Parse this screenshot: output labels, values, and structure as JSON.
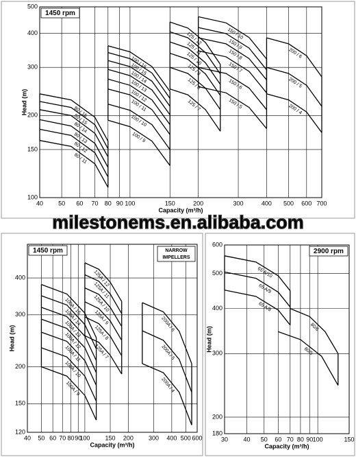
{
  "banner": "milestonems.en.alibaba.com",
  "chart_data": [
    {
      "type": "line",
      "title": "1450 rpm",
      "x_label": "Capacity (m³/h)",
      "y_label": "Head (m)",
      "log_x": true,
      "log_y": true,
      "grid": true,
      "xlim": [
        40,
        700
      ],
      "ylim": [
        100,
        500
      ],
      "xticks": [
        40,
        50,
        60,
        70,
        80,
        90,
        100,
        150,
        200,
        300,
        400,
        500,
        600,
        700
      ],
      "yticks": [
        100,
        150,
        200,
        300,
        400,
        500
      ],
      "series": [
        {
          "name": "80 / 16",
          "color": "#000000",
          "x": [
            40,
            55,
            70,
            80
          ],
          "values": [
            240,
            228,
            197,
            161
          ]
        },
        {
          "name": "80 / 15",
          "color": "#000000",
          "x": [
            40,
            55,
            70,
            80
          ],
          "values": [
            225,
            214,
            185,
            151
          ]
        },
        {
          "name": "80 / 14",
          "color": "#000000",
          "x": [
            40,
            55,
            70,
            80
          ],
          "values": [
            210,
            200,
            172,
            141
          ]
        },
        {
          "name": "80 / 13",
          "color": "#000000",
          "x": [
            40,
            55,
            70,
            80
          ],
          "values": [
            193,
            183,
            158,
            129
          ]
        },
        {
          "name": "80 / 12",
          "color": "#000000",
          "x": [
            40,
            55,
            70,
            80
          ],
          "values": [
            178,
            169,
            146,
            119
          ]
        },
        {
          "name": "80 / 11",
          "color": "#000000",
          "x": [
            40,
            55,
            70,
            80
          ],
          "values": [
            162,
            154,
            133,
            109
          ]
        },
        {
          "name": "100 / 16",
          "color": "#000000",
          "x": [
            80,
            100,
            125,
            150
          ],
          "values": [
            360,
            342,
            302,
            245
          ]
        },
        {
          "name": "100 / 15",
          "color": "#000000",
          "x": [
            80,
            100,
            125,
            150
          ],
          "values": [
            340,
            323,
            286,
            231
          ]
        },
        {
          "name": "100 / 14",
          "color": "#000000",
          "x": [
            80,
            100,
            125,
            150
          ],
          "values": [
            318,
            302,
            267,
            216
          ]
        },
        {
          "name": "100 / 13",
          "color": "#000000",
          "x": [
            80,
            100,
            125,
            150
          ],
          "values": [
            295,
            280,
            248,
            201
          ]
        },
        {
          "name": "100 / 12",
          "color": "#000000",
          "x": [
            80,
            100,
            125,
            150
          ],
          "values": [
            272,
            258,
            228,
            185
          ]
        },
        {
          "name": "100 / 11",
          "color": "#000000",
          "x": [
            80,
            100,
            125,
            150
          ],
          "values": [
            250,
            238,
            210,
            170
          ]
        },
        {
          "name": "100 / 10",
          "color": "#000000",
          "x": [
            80,
            100,
            125,
            150
          ],
          "values": [
            220,
            209,
            185,
            150
          ]
        },
        {
          "name": "100 / 9",
          "color": "#000000",
          "x": [
            80,
            100,
            125,
            150
          ],
          "values": [
            192,
            182,
            161,
            131
          ]
        },
        {
          "name": "125 / 12",
          "color": "#000000",
          "x": [
            150,
            180,
            215,
            250
          ],
          "values": [
            440,
            418,
            370,
            308
          ]
        },
        {
          "name": "125 / 11",
          "color": "#000000",
          "x": [
            150,
            180,
            215,
            250
          ],
          "values": [
            405,
            385,
            340,
            284
          ]
        },
        {
          "name": "125 / 10",
          "color": "#000000",
          "x": [
            150,
            180,
            215,
            250
          ],
          "values": [
            372,
            353,
            312,
            260
          ]
        },
        {
          "name": "125 / 9",
          "color": "#000000",
          "x": [
            150,
            180,
            215,
            250
          ],
          "values": [
            338,
            321,
            284,
            237
          ]
        },
        {
          "name": "125 / 8",
          "color": "#000000",
          "x": [
            150,
            180,
            215,
            250
          ],
          "values": [
            300,
            285,
            252,
            210
          ]
        },
        {
          "name": "125 / 7",
          "color": "#000000",
          "x": [
            150,
            180,
            215,
            250
          ],
          "values": [
            250,
            238,
            210,
            175
          ]
        },
        {
          "name": "150 / 10",
          "color": "#000000",
          "x": [
            200,
            265,
            335,
            400
          ],
          "values": [
            460,
            437,
            386,
            322
          ]
        },
        {
          "name": "150 / 9",
          "color": "#000000",
          "x": [
            200,
            265,
            335,
            400
          ],
          "values": [
            420,
            399,
            353,
            294
          ]
        },
        {
          "name": "150 / 8",
          "color": "#000000",
          "x": [
            200,
            265,
            335,
            400
          ],
          "values": [
            385,
            366,
            323,
            270
          ]
        },
        {
          "name": "150 / 7",
          "color": "#000000",
          "x": [
            200,
            265,
            335,
            400
          ],
          "values": [
            345,
            328,
            290,
            242
          ]
        },
        {
          "name": "150 / 6",
          "color": "#000000",
          "x": [
            200,
            265,
            335,
            400
          ],
          "values": [
            300,
            285,
            252,
            210
          ]
        },
        {
          "name": "150 / 5",
          "color": "#000000",
          "x": [
            200,
            265,
            335,
            400
          ],
          "values": [
            255,
            242,
            214,
            179
          ]
        },
        {
          "name": "200 / 6",
          "color": "#000000",
          "x": [
            400,
            500,
            600,
            700
          ],
          "values": [
            385,
            366,
            331,
            277
          ]
        },
        {
          "name": "200 / 5",
          "color": "#000000",
          "x": [
            400,
            500,
            600,
            700
          ],
          "values": [
            300,
            285,
            258,
            216
          ]
        },
        {
          "name": "200 / 4",
          "color": "#000000",
          "x": [
            400,
            500,
            600,
            700
          ],
          "values": [
            240,
            228,
            206,
            173
          ]
        }
      ]
    },
    {
      "type": "line",
      "title": "1450 rpm",
      "annotation": [
        "NARROW",
        "IMPELLERS"
      ],
      "x_label": "Capacity (m³/h)",
      "y_label": "Head (m)",
      "log_x": true,
      "log_y": true,
      "grid": true,
      "xlim": [
        40,
        600
      ],
      "ylim": [
        120,
        520
      ],
      "xticks": [
        40,
        50,
        60,
        70,
        80,
        90,
        100,
        150,
        200,
        300,
        400,
        500,
        600
      ],
      "yticks": [
        120,
        150,
        200,
        300,
        400
      ],
      "series": [
        {
          "name": "100A / 15",
          "color": "#000000",
          "x": [
            50,
            75,
            100,
            120
          ],
          "values": [
            380,
            353,
            304,
            251
          ]
        },
        {
          "name": "100A / 14",
          "color": "#000000",
          "x": [
            50,
            75,
            100,
            120
          ],
          "values": [
            348,
            324,
            278,
            230
          ]
        },
        {
          "name": "100A / 13",
          "color": "#000000",
          "x": [
            50,
            75,
            100,
            120
          ],
          "values": [
            318,
            296,
            254,
            210
          ]
        },
        {
          "name": "100A / 12",
          "color": "#000000",
          "x": [
            50,
            75,
            100,
            120
          ],
          "values": [
            290,
            270,
            232,
            191
          ]
        },
        {
          "name": "100A / 11",
          "color": "#000000",
          "x": [
            50,
            75,
            100,
            120
          ],
          "values": [
            262,
            244,
            210,
            173
          ]
        },
        {
          "name": "100A / 10",
          "color": "#000000",
          "x": [
            50,
            75,
            100,
            120
          ],
          "values": [
            232,
            216,
            186,
            153
          ]
        },
        {
          "name": "100A / 9",
          "color": "#000000",
          "x": [
            50,
            75,
            100,
            120
          ],
          "values": [
            200,
            186,
            160,
            132
          ]
        },
        {
          "name": "125A / 12",
          "color": "#000000",
          "x": [
            100,
            125,
            150,
            180
          ],
          "values": [
            450,
            428,
            387,
            333
          ]
        },
        {
          "name": "125A / 11",
          "color": "#000000",
          "x": [
            100,
            125,
            150,
            180
          ],
          "values": [
            410,
            390,
            353,
            303
          ]
        },
        {
          "name": "125A / 10",
          "color": "#000000",
          "x": [
            100,
            125,
            150,
            180
          ],
          "values": [
            370,
            352,
            318,
            274
          ]
        },
        {
          "name": "125A / 9",
          "color": "#000000",
          "x": [
            100,
            125,
            150,
            180
          ],
          "values": [
            332,
            315,
            286,
            246
          ]
        },
        {
          "name": "125A / 8",
          "color": "#000000",
          "x": [
            100,
            125,
            150,
            180
          ],
          "values": [
            295,
            280,
            254,
            218
          ]
        },
        {
          "name": "125A / 7",
          "color": "#000000",
          "x": [
            100,
            125,
            150,
            180
          ],
          "values": [
            255,
            242,
            219,
            189
          ]
        },
        {
          "name": "200A / 6",
          "color": "#000000",
          "x": [
            250,
            350,
            450,
            550
          ],
          "values": [
            330,
            307,
            264,
            205
          ]
        },
        {
          "name": "200A / 5",
          "color": "#000000",
          "x": [
            250,
            350,
            450,
            550
          ],
          "values": [
            265,
            246,
            212,
            164
          ]
        },
        {
          "name": "200A / 4",
          "color": "#000000",
          "x": [
            250,
            350,
            450,
            550
          ],
          "values": [
            205,
            191,
            164,
            127
          ]
        }
      ]
    },
    {
      "type": "line",
      "title": "2900 rpm",
      "x_label": "Capacity (m³/h)",
      "y_label": "Head (m)",
      "log_x": true,
      "log_y": true,
      "grid": true,
      "xlim": [
        30,
        150
      ],
      "ylim": [
        180,
        600
      ],
      "xticks": [
        30,
        40,
        50,
        60,
        70,
        80,
        90,
        100,
        150
      ],
      "yticks": [
        180,
        200,
        300,
        400,
        500,
        600
      ],
      "series": [
        {
          "name": "65 A/10",
          "color": "#000000",
          "x": [
            30,
            45,
            60,
            70
          ],
          "values": [
            560,
            538,
            493,
            448
          ]
        },
        {
          "name": "65 A/9",
          "color": "#000000",
          "x": [
            30,
            45,
            60,
            70
          ],
          "values": [
            505,
            485,
            444,
            404
          ]
        },
        {
          "name": "65 A/8",
          "color": "#000000",
          "x": [
            30,
            45,
            60,
            70
          ],
          "values": [
            450,
            432,
            396,
            360
          ]
        },
        {
          "name": "80/6",
          "color": "#000000",
          "x": [
            70,
            90,
            110,
            130
          ],
          "values": [
            400,
            380,
            345,
            300
          ]
        },
        {
          "name": "80/5",
          "color": "#000000",
          "x": [
            60,
            80,
            105,
            130
          ],
          "values": [
            345,
            328,
            295,
            245
          ]
        }
      ]
    }
  ]
}
